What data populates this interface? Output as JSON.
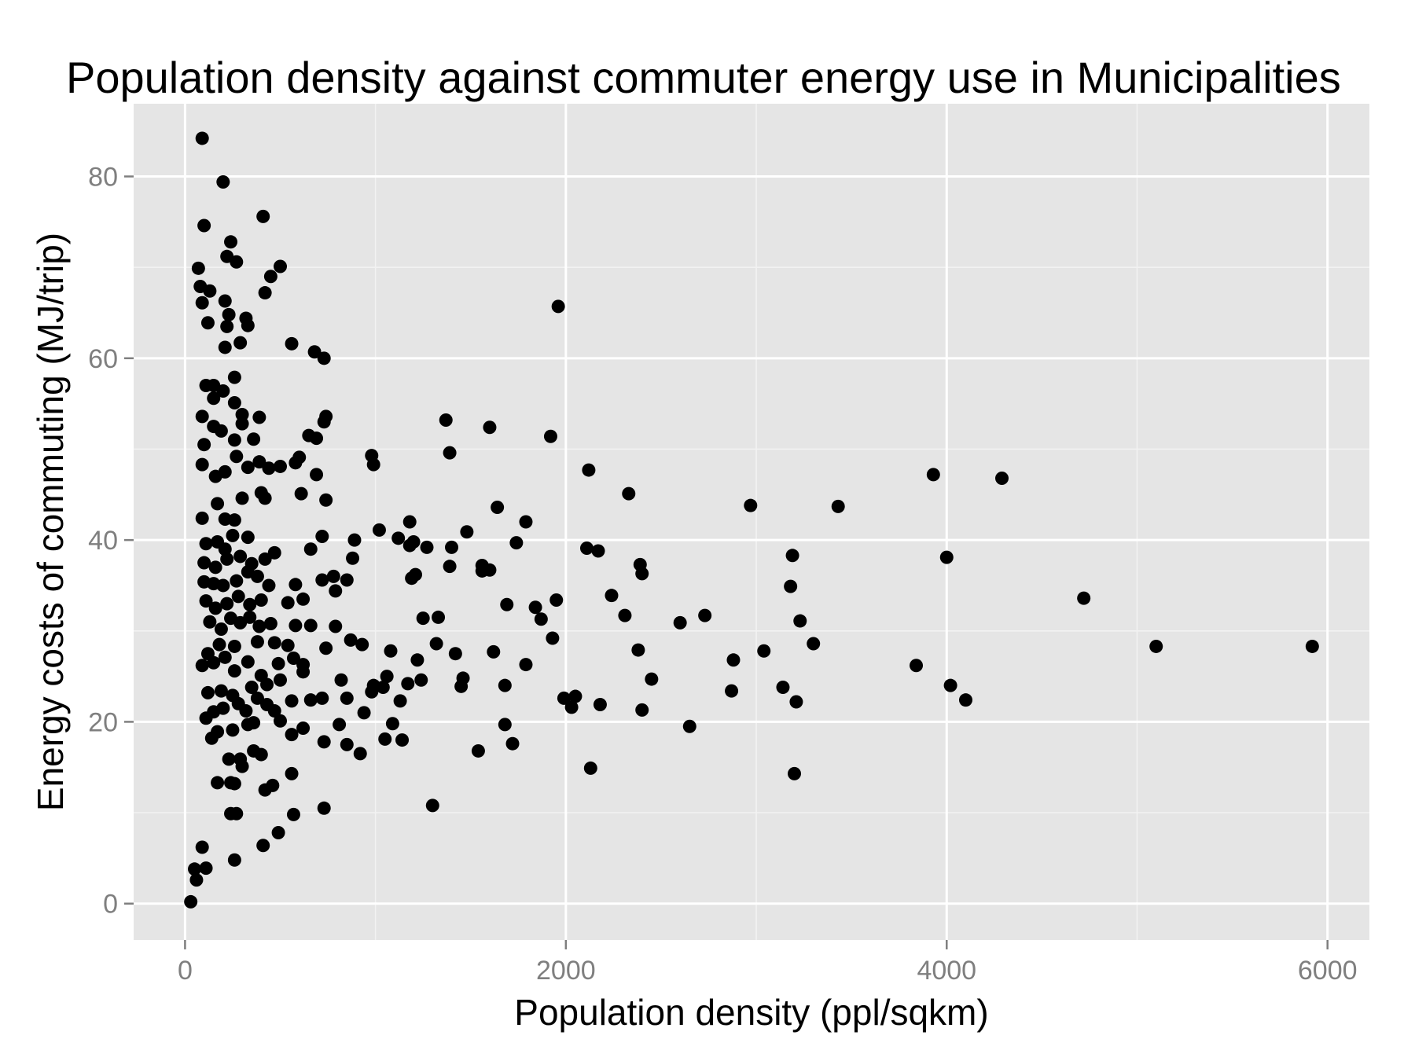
{
  "chart_data": {
    "type": "scatter",
    "title": "Population density against commuter energy use in Municipalities",
    "xlabel": "Population density (ppl/sqkm)",
    "ylabel": "Energy costs of commuting (MJ/trip)",
    "xlim": [
      -270,
      6220
    ],
    "ylim": [
      -4,
      88
    ],
    "x_ticks": [
      0,
      2000,
      4000,
      6000
    ],
    "x_tick_labels": [
      "0",
      "2000",
      "4000",
      "6000"
    ],
    "y_ticks": [
      0,
      20,
      40,
      60,
      80
    ],
    "y_tick_labels": [
      "0",
      "20",
      "40",
      "60",
      "80"
    ],
    "grid": true,
    "legend": "none",
    "colors": {
      "panel": "#e5e5e5",
      "grid_major": "#ffffff",
      "grid_minor": "#f2f2f2",
      "point": "#000000",
      "tick": "#7f7f7f"
    },
    "series": [
      {
        "points": [
          [
            30,
            0.2
          ],
          [
            60,
            2.6
          ],
          [
            50,
            3.8
          ],
          [
            90,
            6.2
          ],
          [
            110,
            3.9
          ],
          [
            260,
            4.8
          ],
          [
            410,
            6.4
          ],
          [
            490,
            7.8
          ],
          [
            570,
            9.8
          ],
          [
            730,
            10.5
          ],
          [
            1300,
            10.8
          ],
          [
            240,
            9.9
          ],
          [
            270,
            9.9
          ],
          [
            170,
            13.3
          ],
          [
            240,
            13.3
          ],
          [
            260,
            13.2
          ],
          [
            420,
            12.5
          ],
          [
            460,
            13.0
          ],
          [
            560,
            14.3
          ],
          [
            2130,
            14.9
          ],
          [
            3200,
            14.3
          ],
          [
            230,
            15.9
          ],
          [
            290,
            15.9
          ],
          [
            300,
            15.1
          ],
          [
            360,
            16.8
          ],
          [
            400,
            16.4
          ],
          [
            920,
            16.5
          ],
          [
            1540,
            16.8
          ],
          [
            1720,
            17.6
          ],
          [
            730,
            17.8
          ],
          [
            850,
            17.5
          ],
          [
            1050,
            18.1
          ],
          [
            1140,
            18.0
          ],
          [
            140,
            18.2
          ],
          [
            170,
            18.9
          ],
          [
            250,
            19.1
          ],
          [
            330,
            19.7
          ],
          [
            360,
            19.9
          ],
          [
            500,
            20.1
          ],
          [
            560,
            18.6
          ],
          [
            620,
            19.3
          ],
          [
            810,
            19.7
          ],
          [
            1090,
            19.8
          ],
          [
            1680,
            19.7
          ],
          [
            2650,
            19.5
          ],
          [
            110,
            20.4
          ],
          [
            150,
            21.1
          ],
          [
            200,
            21.5
          ],
          [
            280,
            22.0
          ],
          [
            320,
            21.2
          ],
          [
            380,
            22.6
          ],
          [
            430,
            21.9
          ],
          [
            470,
            21.2
          ],
          [
            560,
            22.3
          ],
          [
            660,
            22.4
          ],
          [
            720,
            22.6
          ],
          [
            850,
            22.6
          ],
          [
            940,
            21.0
          ],
          [
            1130,
            22.3
          ],
          [
            1990,
            22.6
          ],
          [
            2030,
            21.6
          ],
          [
            2050,
            22.8
          ],
          [
            2180,
            21.9
          ],
          [
            2400,
            21.3
          ],
          [
            3210,
            22.2
          ],
          [
            4100,
            22.4
          ],
          [
            120,
            23.2
          ],
          [
            190,
            23.4
          ],
          [
            250,
            22.9
          ],
          [
            350,
            23.8
          ],
          [
            430,
            24.1
          ],
          [
            500,
            24.6
          ],
          [
            620,
            25.5
          ],
          [
            820,
            24.6
          ],
          [
            980,
            23.3
          ],
          [
            1040,
            23.8
          ],
          [
            1170,
            24.2
          ],
          [
            1240,
            24.6
          ],
          [
            1450,
            23.9
          ],
          [
            1680,
            24.0
          ],
          [
            2450,
            24.7
          ],
          [
            2870,
            23.4
          ],
          [
            3140,
            23.8
          ],
          [
            4020,
            24.0
          ],
          [
            3840,
            26.2
          ],
          [
            90,
            26.2
          ],
          [
            150,
            26.5
          ],
          [
            210,
            27.1
          ],
          [
            260,
            25.6
          ],
          [
            330,
            26.6
          ],
          [
            400,
            25.1
          ],
          [
            490,
            26.4
          ],
          [
            570,
            27.0
          ],
          [
            620,
            26.3
          ],
          [
            990,
            24.0
          ],
          [
            1060,
            25.0
          ],
          [
            1220,
            26.8
          ],
          [
            1460,
            24.8
          ],
          [
            1620,
            27.7
          ],
          [
            1790,
            26.3
          ],
          [
            2380,
            27.9
          ],
          [
            2880,
            26.8
          ],
          [
            3040,
            27.8
          ],
          [
            120,
            27.5
          ],
          [
            180,
            28.5
          ],
          [
            260,
            28.3
          ],
          [
            380,
            28.8
          ],
          [
            470,
            28.7
          ],
          [
            540,
            28.4
          ],
          [
            740,
            28.1
          ],
          [
            870,
            29.0
          ],
          [
            930,
            28.5
          ],
          [
            1080,
            27.8
          ],
          [
            1320,
            28.6
          ],
          [
            1420,
            27.5
          ],
          [
            1930,
            29.2
          ],
          [
            3300,
            28.6
          ],
          [
            5100,
            28.3
          ],
          [
            5920,
            28.3
          ],
          [
            130,
            31.0
          ],
          [
            190,
            30.2
          ],
          [
            240,
            31.4
          ],
          [
            290,
            30.9
          ],
          [
            340,
            31.5
          ],
          [
            390,
            30.5
          ],
          [
            450,
            30.8
          ],
          [
            580,
            30.6
          ],
          [
            660,
            30.6
          ],
          [
            790,
            30.5
          ],
          [
            1250,
            31.4
          ],
          [
            1330,
            31.5
          ],
          [
            1870,
            31.3
          ],
          [
            2310,
            31.7
          ],
          [
            2600,
            30.9
          ],
          [
            2730,
            31.7
          ],
          [
            3230,
            31.1
          ],
          [
            110,
            33.3
          ],
          [
            160,
            32.5
          ],
          [
            220,
            33.0
          ],
          [
            280,
            33.8
          ],
          [
            340,
            32.9
          ],
          [
            400,
            33.4
          ],
          [
            540,
            33.1
          ],
          [
            620,
            33.5
          ],
          [
            790,
            34.4
          ],
          [
            1690,
            32.9
          ],
          [
            1840,
            32.6
          ],
          [
            1950,
            33.4
          ],
          [
            2240,
            33.9
          ],
          [
            4720,
            33.6
          ],
          [
            100,
            35.4
          ],
          [
            150,
            35.2
          ],
          [
            200,
            35.0
          ],
          [
            270,
            35.5
          ],
          [
            330,
            36.5
          ],
          [
            380,
            36.0
          ],
          [
            440,
            35.0
          ],
          [
            580,
            35.1
          ],
          [
            720,
            35.6
          ],
          [
            850,
            35.6
          ],
          [
            1190,
            35.8
          ],
          [
            1210,
            36.2
          ],
          [
            1560,
            36.6
          ],
          [
            1600,
            36.7
          ],
          [
            2400,
            36.3
          ],
          [
            3180,
            34.9
          ],
          [
            100,
            37.5
          ],
          [
            160,
            37.0
          ],
          [
            220,
            37.9
          ],
          [
            290,
            38.2
          ],
          [
            350,
            37.4
          ],
          [
            420,
            37.9
          ],
          [
            470,
            38.6
          ],
          [
            660,
            39.0
          ],
          [
            780,
            36.0
          ],
          [
            880,
            38.0
          ],
          [
            1390,
            37.1
          ],
          [
            1560,
            37.2
          ],
          [
            2390,
            37.3
          ],
          [
            3190,
            38.3
          ],
          [
            4000,
            38.1
          ],
          [
            110,
            39.6
          ],
          [
            170,
            39.8
          ],
          [
            210,
            39.0
          ],
          [
            250,
            40.5
          ],
          [
            330,
            40.3
          ],
          [
            720,
            40.4
          ],
          [
            890,
            40.0
          ],
          [
            1020,
            41.1
          ],
          [
            1120,
            40.2
          ],
          [
            1180,
            39.4
          ],
          [
            1200,
            39.8
          ],
          [
            1270,
            39.2
          ],
          [
            1400,
            39.2
          ],
          [
            1480,
            40.9
          ],
          [
            1740,
            39.7
          ],
          [
            2110,
            39.1
          ],
          [
            2170,
            38.8
          ],
          [
            90,
            42.4
          ],
          [
            170,
            44.0
          ],
          [
            210,
            42.3
          ],
          [
            260,
            42.2
          ],
          [
            300,
            44.6
          ],
          [
            400,
            45.2
          ],
          [
            420,
            44.6
          ],
          [
            610,
            45.1
          ],
          [
            740,
            44.4
          ],
          [
            1180,
            42.0
          ],
          [
            1640,
            43.6
          ],
          [
            1790,
            42.0
          ],
          [
            2970,
            43.8
          ],
          [
            3430,
            43.7
          ],
          [
            90,
            48.3
          ],
          [
            160,
            47.0
          ],
          [
            210,
            47.5
          ],
          [
            270,
            49.2
          ],
          [
            330,
            48.0
          ],
          [
            390,
            48.6
          ],
          [
            440,
            47.9
          ],
          [
            500,
            48.1
          ],
          [
            580,
            48.5
          ],
          [
            600,
            49.1
          ],
          [
            690,
            47.2
          ],
          [
            980,
            49.3
          ],
          [
            990,
            48.3
          ],
          [
            1390,
            49.6
          ],
          [
            2120,
            47.7
          ],
          [
            2330,
            45.1
          ],
          [
            3930,
            47.2
          ],
          [
            4290,
            46.8
          ],
          [
            100,
            50.5
          ],
          [
            150,
            52.5
          ],
          [
            190,
            52.0
          ],
          [
            260,
            51.0
          ],
          [
            300,
            52.8
          ],
          [
            360,
            51.1
          ],
          [
            650,
            51.5
          ],
          [
            690,
            51.2
          ],
          [
            730,
            53.0
          ],
          [
            1370,
            53.2
          ],
          [
            1600,
            52.4
          ],
          [
            1920,
            51.4
          ],
          [
            90,
            53.6
          ],
          [
            150,
            55.6
          ],
          [
            200,
            56.4
          ],
          [
            260,
            55.1
          ],
          [
            300,
            53.8
          ],
          [
            390,
            53.5
          ],
          [
            740,
            53.6
          ],
          [
            110,
            57.0
          ],
          [
            150,
            57.0
          ],
          [
            260,
            57.9
          ],
          [
            210,
            61.2
          ],
          [
            290,
            61.7
          ],
          [
            560,
            61.6
          ],
          [
            680,
            60.7
          ],
          [
            730,
            60.0
          ],
          [
            220,
            63.5
          ],
          [
            230,
            64.8
          ],
          [
            320,
            64.4
          ],
          [
            330,
            63.6
          ],
          [
            120,
            63.9
          ],
          [
            1960,
            65.7
          ],
          [
            90,
            66.1
          ],
          [
            210,
            66.3
          ],
          [
            130,
            67.4
          ],
          [
            420,
            67.2
          ],
          [
            80,
            67.9
          ],
          [
            450,
            69.0
          ],
          [
            70,
            69.9
          ],
          [
            500,
            70.1
          ],
          [
            240,
            72.8
          ],
          [
            270,
            70.6
          ],
          [
            220,
            71.2
          ],
          [
            100,
            74.6
          ],
          [
            410,
            75.6
          ],
          [
            200,
            79.4
          ],
          [
            90,
            84.2
          ]
        ]
      }
    ]
  }
}
